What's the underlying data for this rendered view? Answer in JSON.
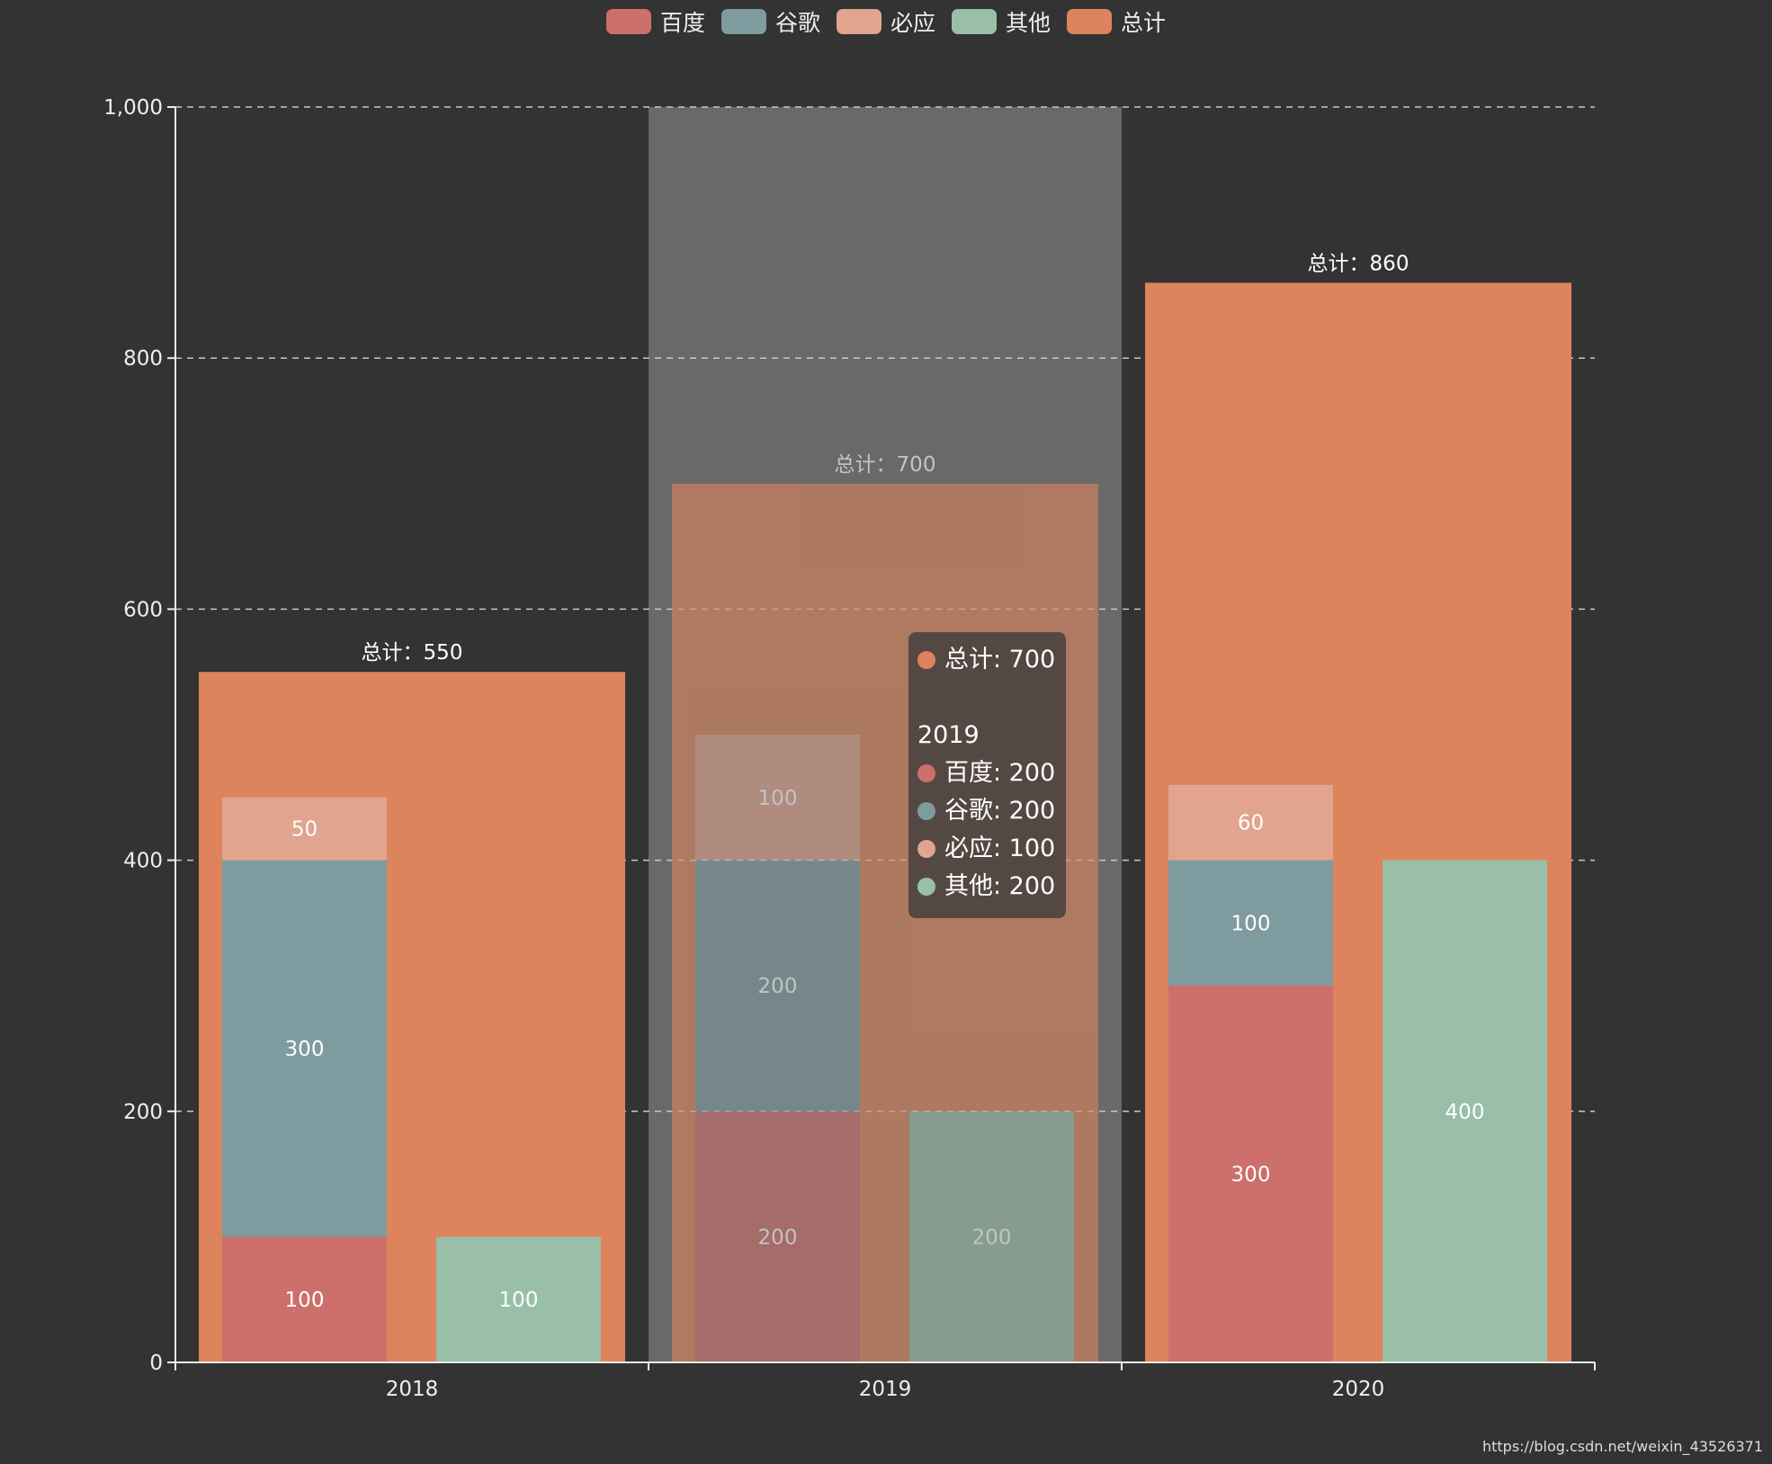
{
  "legend": [
    {
      "name": "百度",
      "color": "#cd6f6a"
    },
    {
      "name": "谷歌",
      "color": "#7e9ba0"
    },
    {
      "name": "必应",
      "color": "#e0a48f"
    },
    {
      "name": "其他",
      "color": "#99bfa9"
    },
    {
      "name": "总计",
      "color": "#dd845d"
    }
  ],
  "chart_data": {
    "type": "bar",
    "categories": [
      "2018",
      "2019",
      "2020"
    ],
    "ylim": [
      0,
      1000
    ],
    "yticks": [
      0,
      200,
      400,
      600,
      800,
      1000
    ],
    "ytick_labels": [
      "0",
      "200",
      "400",
      "600",
      "800",
      "1,000"
    ],
    "grid": true,
    "highlighted_category": "2019",
    "series": [
      {
        "name": "总计",
        "values": [
          550,
          700,
          860
        ],
        "label_prefix": "总计：",
        "label_position": "top"
      },
      {
        "name": "百度",
        "stack": "search",
        "values": [
          100,
          200,
          300
        ]
      },
      {
        "name": "谷歌",
        "stack": "search",
        "values": [
          300,
          200,
          100
        ]
      },
      {
        "name": "必应",
        "stack": "search",
        "values": [
          50,
          100,
          60
        ]
      },
      {
        "name": "其他",
        "values": [
          100,
          200,
          400
        ]
      }
    ]
  },
  "tooltip": {
    "total_label": "总计: 700",
    "category": "2019",
    "rows": [
      "百度: 200",
      "谷歌: 200",
      "必应: 100",
      "其他: 200"
    ]
  },
  "watermark": "https://blog.csdn.net/weixin_43526371"
}
